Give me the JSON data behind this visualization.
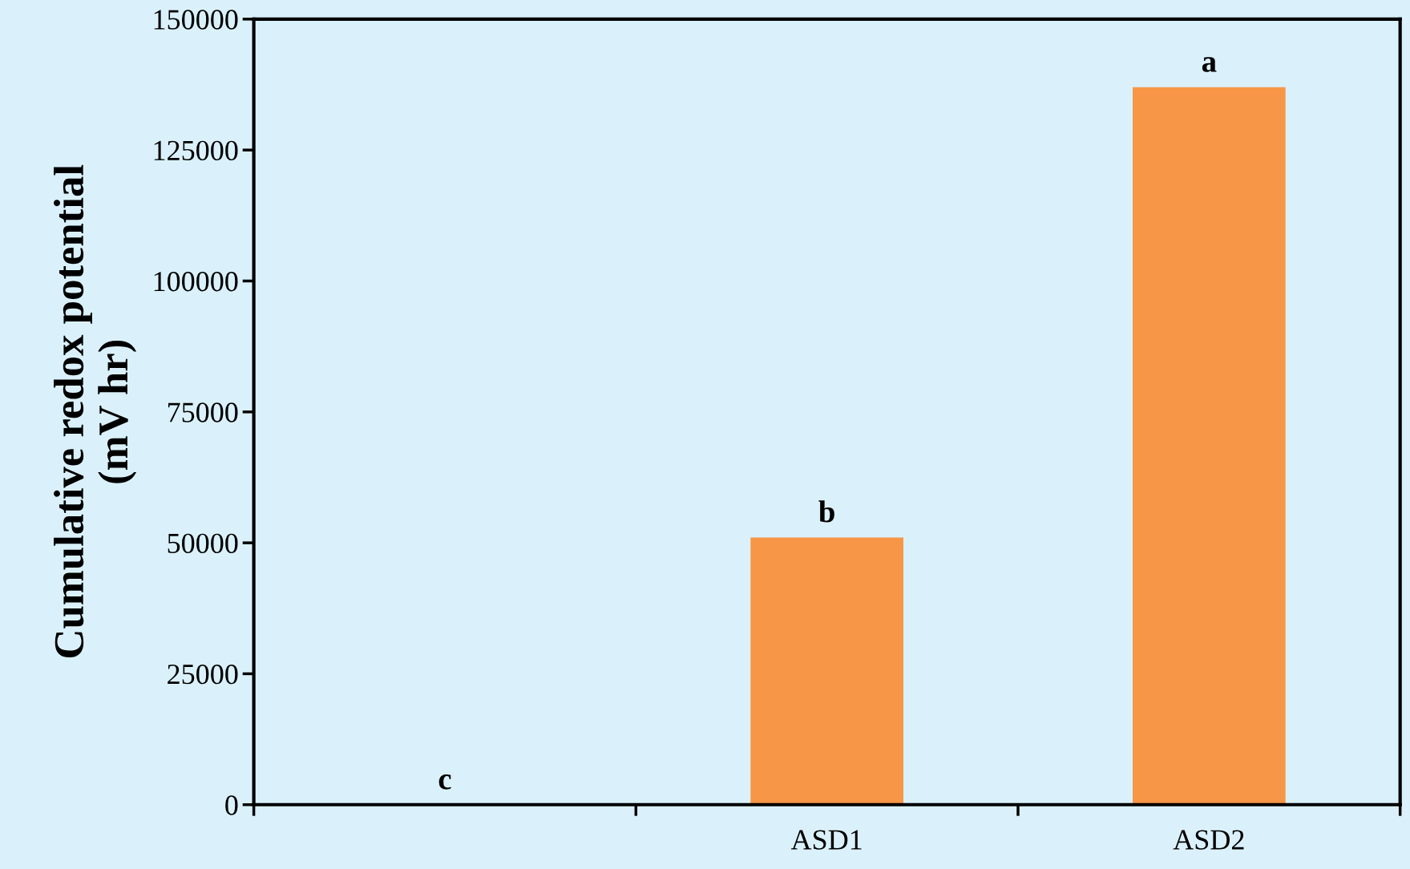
{
  "chart_data": {
    "type": "bar",
    "ylabel": "Cumulative redox potential\n(mV hr)",
    "categories": [
      null,
      "ASD1",
      "ASD2"
    ],
    "values": [
      0,
      51000,
      137000
    ],
    "value_labels": [
      "c",
      "b",
      "a"
    ],
    "color": "#f79646",
    "ylim": [
      0,
      150000
    ],
    "yticks": [
      0,
      25000,
      50000,
      75000,
      100000,
      125000,
      150000
    ],
    "grid": false,
    "legend": false
  }
}
